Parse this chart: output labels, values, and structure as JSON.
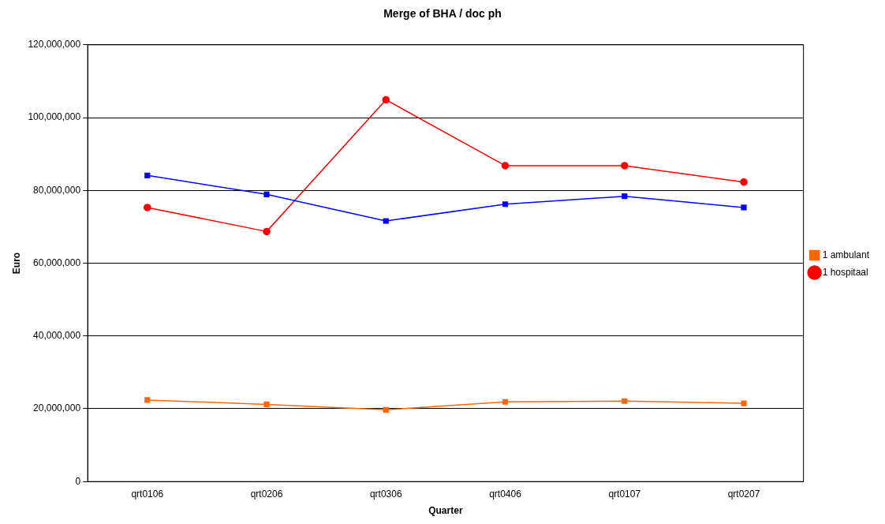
{
  "chart_data": {
    "type": "line",
    "title": "Merge of BHA / doc ph",
    "xlabel": "Quarter",
    "ylabel": "Euro",
    "categories": [
      "qrt0106",
      "qrt0206",
      "qrt0306",
      "qrt0406",
      "qrt0107",
      "qrt0207"
    ],
    "series": [
      {
        "color": "#0000ff",
        "marker": "square",
        "values": [
          84100000,
          78900000,
          71600000,
          76200000,
          78400000,
          75300000
        ]
      },
      {
        "name": "1 ambulant",
        "color": "#ff6600",
        "marker": "square",
        "values": [
          22400000,
          21200000,
          19700000,
          21900000,
          22100000,
          21500000
        ]
      },
      {
        "name": "1 hospitaal",
        "color": "#ff0000",
        "marker": "circle",
        "values": [
          75300000,
          68700000,
          104900000,
          86800000,
          86800000,
          82300000
        ]
      }
    ],
    "ylim": [
      0,
      120000000
    ],
    "yticks": [
      {
        "value": 0,
        "label": "0"
      },
      {
        "value": 20000000,
        "label": "20,000,000"
      },
      {
        "value": 40000000,
        "label": "40,000,000"
      },
      {
        "value": 60000000,
        "label": "60,000,000"
      },
      {
        "value": 80000000,
        "label": "80,000,000"
      },
      {
        "value": 100000000,
        "label": "100,000,000"
      },
      {
        "value": 120000000,
        "label": "120,000,000"
      }
    ],
    "grid": "y",
    "legend": "right",
    "line_style": "solid"
  }
}
